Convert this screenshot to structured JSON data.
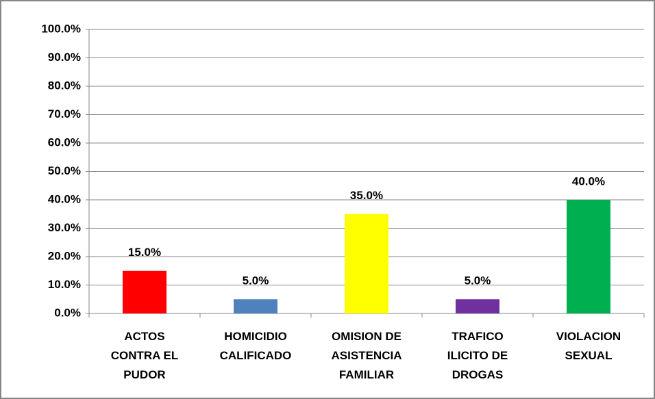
{
  "chart_data": {
    "type": "bar",
    "categories": [
      "ACTOS CONTRA EL PUDOR",
      "HOMICIDIO CALIFICADO",
      "OMISION DE ASISTENCIA FAMILIAR",
      "TRAFICO ILICITO DE DROGAS",
      "VIOLACION SEXUAL"
    ],
    "values": [
      15,
      5,
      35,
      5,
      40
    ],
    "value_labels": [
      "15.0%",
      "5.0%",
      "35.0%",
      "5.0%",
      "40.0%"
    ],
    "colors": [
      "#ff0000",
      "#4f81bd",
      "#ffff00",
      "#7030a0",
      "#00b050"
    ],
    "ylim": [
      0,
      100
    ],
    "yticks": [
      {
        "value": 0,
        "label": "0.0%"
      },
      {
        "value": 10,
        "label": "10.0%"
      },
      {
        "value": 20,
        "label": "20.0%"
      },
      {
        "value": 30,
        "label": "30.0%"
      },
      {
        "value": 40,
        "label": "40.0%"
      },
      {
        "value": 50,
        "label": "50.0%"
      },
      {
        "value": 60,
        "label": "60.0%"
      },
      {
        "value": 70,
        "label": "70.0%"
      },
      {
        "value": 80,
        "label": "80.0%"
      },
      {
        "value": 90,
        "label": "90.0%"
      },
      {
        "value": 100,
        "label": "100.0%"
      }
    ],
    "grid": true
  }
}
